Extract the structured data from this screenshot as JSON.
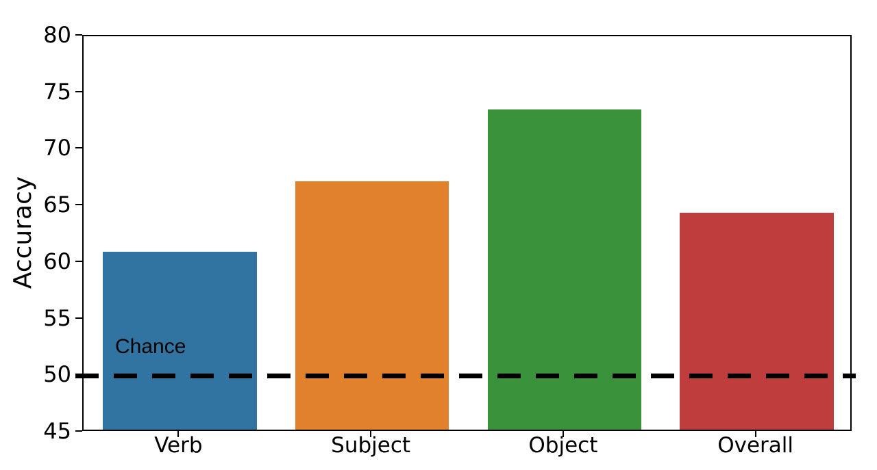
{
  "chart_data": {
    "type": "bar",
    "categories": [
      "Verb",
      "Subject",
      "Object",
      "Overall"
    ],
    "values": [
      60.8,
      67.1,
      73.5,
      64.3
    ],
    "bar_colors": [
      "#3274a1",
      "#e1812c",
      "#3a923a",
      "#c03d3e"
    ],
    "title": "",
    "xlabel": "",
    "ylabel": "Accuracy",
    "ylim": [
      45,
      80
    ],
    "yticks": [
      45,
      50,
      55,
      60,
      65,
      70,
      75,
      80
    ],
    "reference_line": {
      "value": 50,
      "label": "Chance",
      "style": "dashed",
      "color": "#000000"
    },
    "grid": false,
    "legend_position": "none",
    "frame": "box",
    "bar_width_fraction": 0.8
  }
}
